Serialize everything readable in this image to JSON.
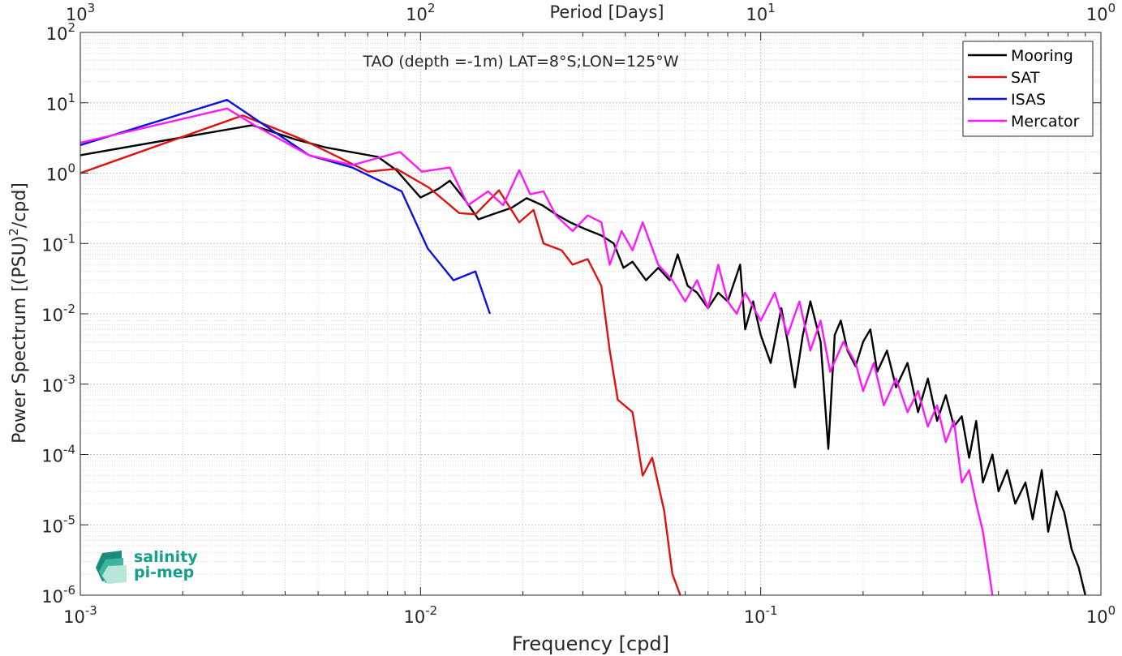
{
  "chart_data": {
    "type": "line",
    "title": "TAO (depth =-1m) LAT=8°S;LON=125°W",
    "xlabel": "Frequency [cpd]",
    "ylabel": "Power Spectrum [(PSU)",
    "ylabel_sup": "2",
    "ylabel_tail": "/cpd]",
    "top_xlabel": "Period [Days]",
    "xscale": "log",
    "yscale": "log",
    "xlim": [
      0.001,
      1
    ],
    "ylim": [
      1e-06,
      100
    ],
    "grid": true,
    "legend_position": "top-right",
    "xticks": [
      {
        "value": 0.001,
        "base": "10",
        "exp": "-3"
      },
      {
        "value": 0.01,
        "base": "10",
        "exp": "-2"
      },
      {
        "value": 0.1,
        "base": "10",
        "exp": "-1"
      },
      {
        "value": 1,
        "base": "10",
        "exp": "0"
      }
    ],
    "top_xticks": [
      {
        "value": 0.001,
        "base": "10",
        "exp": "3"
      },
      {
        "value": 0.01,
        "base": "10",
        "exp": "2"
      },
      {
        "value": 0.1,
        "base": "10",
        "exp": "1"
      },
      {
        "value": 1,
        "base": "10",
        "exp": "0"
      }
    ],
    "yticks": [
      {
        "value": 1e-06,
        "base": "10",
        "exp": "-6"
      },
      {
        "value": 1e-05,
        "base": "10",
        "exp": "-5"
      },
      {
        "value": 0.0001,
        "base": "10",
        "exp": "-4"
      },
      {
        "value": 0.001,
        "base": "10",
        "exp": "-3"
      },
      {
        "value": 0.01,
        "base": "10",
        "exp": "-2"
      },
      {
        "value": 0.1,
        "base": "10",
        "exp": "-1"
      },
      {
        "value": 1,
        "base": "10",
        "exp": "0"
      },
      {
        "value": 10,
        "base": "10",
        "exp": "1"
      },
      {
        "value": 100,
        "base": "10",
        "exp": "2"
      }
    ],
    "series": [
      {
        "name": "Mooring",
        "color": "#000000",
        "points": [
          [
            0.001,
            1.8
          ],
          [
            0.0032,
            4.8
          ],
          [
            0.0043,
            3.0
          ],
          [
            0.0053,
            2.3
          ],
          [
            0.0075,
            1.7
          ],
          [
            0.0085,
            1.1
          ],
          [
            0.01,
            0.45
          ],
          [
            0.0113,
            0.6
          ],
          [
            0.0122,
            0.78
          ],
          [
            0.0135,
            0.42
          ],
          [
            0.0148,
            0.22
          ],
          [
            0.0163,
            0.26
          ],
          [
            0.0185,
            0.32
          ],
          [
            0.0205,
            0.44
          ],
          [
            0.0228,
            0.35
          ],
          [
            0.025,
            0.26
          ],
          [
            0.0275,
            0.2
          ],
          [
            0.0305,
            0.16
          ],
          [
            0.034,
            0.13
          ],
          [
            0.037,
            0.1
          ],
          [
            0.0395,
            0.045
          ],
          [
            0.042,
            0.055
          ],
          [
            0.046,
            0.03
          ],
          [
            0.05,
            0.045
          ],
          [
            0.054,
            0.03
          ],
          [
            0.057,
            0.07
          ],
          [
            0.061,
            0.025
          ],
          [
            0.065,
            0.02
          ],
          [
            0.07,
            0.012
          ],
          [
            0.075,
            0.02
          ],
          [
            0.08,
            0.015
          ],
          [
            0.087,
            0.05
          ],
          [
            0.09,
            0.006
          ],
          [
            0.095,
            0.015
          ],
          [
            0.1,
            0.005
          ],
          [
            0.107,
            0.002
          ],
          [
            0.115,
            0.012
          ],
          [
            0.12,
            0.004
          ],
          [
            0.126,
            0.0009
          ],
          [
            0.133,
            0.005
          ],
          [
            0.14,
            0.015
          ],
          [
            0.15,
            0.004
          ],
          [
            0.158,
            0.00012
          ],
          [
            0.165,
            0.005
          ],
          [
            0.172,
            0.008
          ],
          [
            0.18,
            0.003
          ],
          [
            0.19,
            0.0018
          ],
          [
            0.2,
            0.004
          ],
          [
            0.21,
            0.006
          ],
          [
            0.22,
            0.0015
          ],
          [
            0.235,
            0.003
          ],
          [
            0.25,
            0.0009
          ],
          [
            0.27,
            0.002
          ],
          [
            0.29,
            0.0004
          ],
          [
            0.31,
            0.0012
          ],
          [
            0.33,
            0.0003
          ],
          [
            0.35,
            0.0007
          ],
          [
            0.37,
            0.00025
          ],
          [
            0.39,
            0.00035
          ],
          [
            0.41,
            9e-05
          ],
          [
            0.43,
            0.0003
          ],
          [
            0.45,
            4e-05
          ],
          [
            0.48,
            0.0001
          ],
          [
            0.5,
            3e-05
          ],
          [
            0.53,
            6e-05
          ],
          [
            0.56,
            2e-05
          ],
          [
            0.6,
            4e-05
          ],
          [
            0.63,
            1.2e-05
          ],
          [
            0.67,
            6e-05
          ],
          [
            0.7,
            8e-06
          ],
          [
            0.74,
            3e-05
          ],
          [
            0.78,
            1.5e-05
          ],
          [
            0.82,
            4.5e-06
          ],
          [
            0.86,
            2.5e-06
          ],
          [
            0.9,
            1e-06
          ]
        ]
      },
      {
        "name": "SAT",
        "color": "#e0110f",
        "points": [
          [
            0.001,
            1.0
          ],
          [
            0.003,
            6.6
          ],
          [
            0.0045,
            3.0
          ],
          [
            0.007,
            1.05
          ],
          [
            0.0085,
            1.15
          ],
          [
            0.0106,
            0.62
          ],
          [
            0.013,
            0.27
          ],
          [
            0.0145,
            0.26
          ],
          [
            0.017,
            0.57
          ],
          [
            0.0195,
            0.2
          ],
          [
            0.0215,
            0.3
          ],
          [
            0.023,
            0.1
          ],
          [
            0.026,
            0.08
          ],
          [
            0.028,
            0.05
          ],
          [
            0.031,
            0.06
          ],
          [
            0.034,
            0.025
          ],
          [
            0.036,
            0.003
          ],
          [
            0.038,
            0.0006
          ],
          [
            0.042,
            0.0004
          ],
          [
            0.045,
            5e-05
          ],
          [
            0.048,
            9e-05
          ],
          [
            0.052,
            1.6e-05
          ],
          [
            0.055,
            2e-06
          ],
          [
            0.058,
            1e-06
          ]
        ]
      },
      {
        "name": "ISAS",
        "color": "#0a10e6",
        "points": [
          [
            0.001,
            2.5
          ],
          [
            0.0027,
            11.0
          ],
          [
            0.0047,
            1.8
          ],
          [
            0.0063,
            1.2
          ],
          [
            0.0088,
            0.55
          ],
          [
            0.0105,
            0.085
          ],
          [
            0.0125,
            0.03
          ],
          [
            0.0145,
            0.04
          ],
          [
            0.016,
            0.01
          ]
        ]
      },
      {
        "name": "Mercator",
        "color": "#ff17ff",
        "points": [
          [
            0.001,
            2.7
          ],
          [
            0.0027,
            8.3
          ],
          [
            0.0033,
            4.6
          ],
          [
            0.0047,
            1.8
          ],
          [
            0.0063,
            1.3
          ],
          [
            0.0087,
            2.0
          ],
          [
            0.0101,
            1.05
          ],
          [
            0.0122,
            1.2
          ],
          [
            0.0138,
            0.35
          ],
          [
            0.0158,
            0.55
          ],
          [
            0.0175,
            0.35
          ],
          [
            0.0195,
            1.1
          ],
          [
            0.021,
            0.5
          ],
          [
            0.023,
            0.55
          ],
          [
            0.025,
            0.25
          ],
          [
            0.028,
            0.15
          ],
          [
            0.031,
            0.25
          ],
          [
            0.034,
            0.2
          ],
          [
            0.036,
            0.05
          ],
          [
            0.039,
            0.15
          ],
          [
            0.042,
            0.08
          ],
          [
            0.045,
            0.2
          ],
          [
            0.05,
            0.05
          ],
          [
            0.055,
            0.03
          ],
          [
            0.06,
            0.015
          ],
          [
            0.065,
            0.03
          ],
          [
            0.07,
            0.012
          ],
          [
            0.075,
            0.05
          ],
          [
            0.08,
            0.015
          ],
          [
            0.085,
            0.01
          ],
          [
            0.09,
            0.02
          ],
          [
            0.1,
            0.008
          ],
          [
            0.11,
            0.02
          ],
          [
            0.12,
            0.005
          ],
          [
            0.13,
            0.015
          ],
          [
            0.14,
            0.003
          ],
          [
            0.15,
            0.008
          ],
          [
            0.16,
            0.0015
          ],
          [
            0.175,
            0.004
          ],
          [
            0.19,
            0.002
          ],
          [
            0.2,
            0.0008
          ],
          [
            0.215,
            0.002
          ],
          [
            0.23,
            0.0005
          ],
          [
            0.25,
            0.0012
          ],
          [
            0.27,
            0.0004
          ],
          [
            0.29,
            0.0008
          ],
          [
            0.31,
            0.00025
          ],
          [
            0.33,
            0.0005
          ],
          [
            0.35,
            0.00015
          ],
          [
            0.37,
            0.0003
          ],
          [
            0.39,
            4e-05
          ],
          [
            0.41,
            6e-05
          ],
          [
            0.43,
            2e-05
          ],
          [
            0.45,
            8e-06
          ],
          [
            0.47,
            2e-06
          ],
          [
            0.48,
            1e-06
          ]
        ]
      }
    ]
  },
  "logo": {
    "line1": "salinity",
    "line2": "pi-mep"
  }
}
